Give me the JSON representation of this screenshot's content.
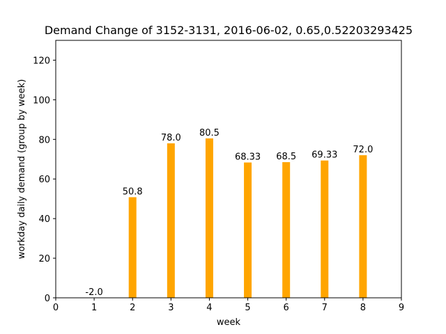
{
  "chart_data": {
    "type": "bar",
    "title": "Demand Change of 3152-3131, 2016-06-02, 0.65,0.52203293425",
    "xlabel": "week",
    "ylabel": "workday daily demand (group by week)",
    "xlim": [
      0,
      9
    ],
    "ylim": [
      0,
      130
    ],
    "xticks": [
      0,
      1,
      2,
      3,
      4,
      5,
      6,
      7,
      8,
      9
    ],
    "yticks": [
      0,
      20,
      40,
      60,
      80,
      100,
      120
    ],
    "grid": false,
    "bar_color": "#ffa500",
    "x": [
      1,
      2,
      3,
      4,
      5,
      6,
      7,
      8
    ],
    "values": [
      -2.0,
      50.8,
      78.0,
      80.5,
      68.33,
      68.5,
      69.33,
      72.0
    ],
    "labels": [
      "-2.0",
      "50.8",
      "78.0",
      "80.5",
      "68.33",
      "68.5",
      "69.33",
      "72.0"
    ]
  }
}
